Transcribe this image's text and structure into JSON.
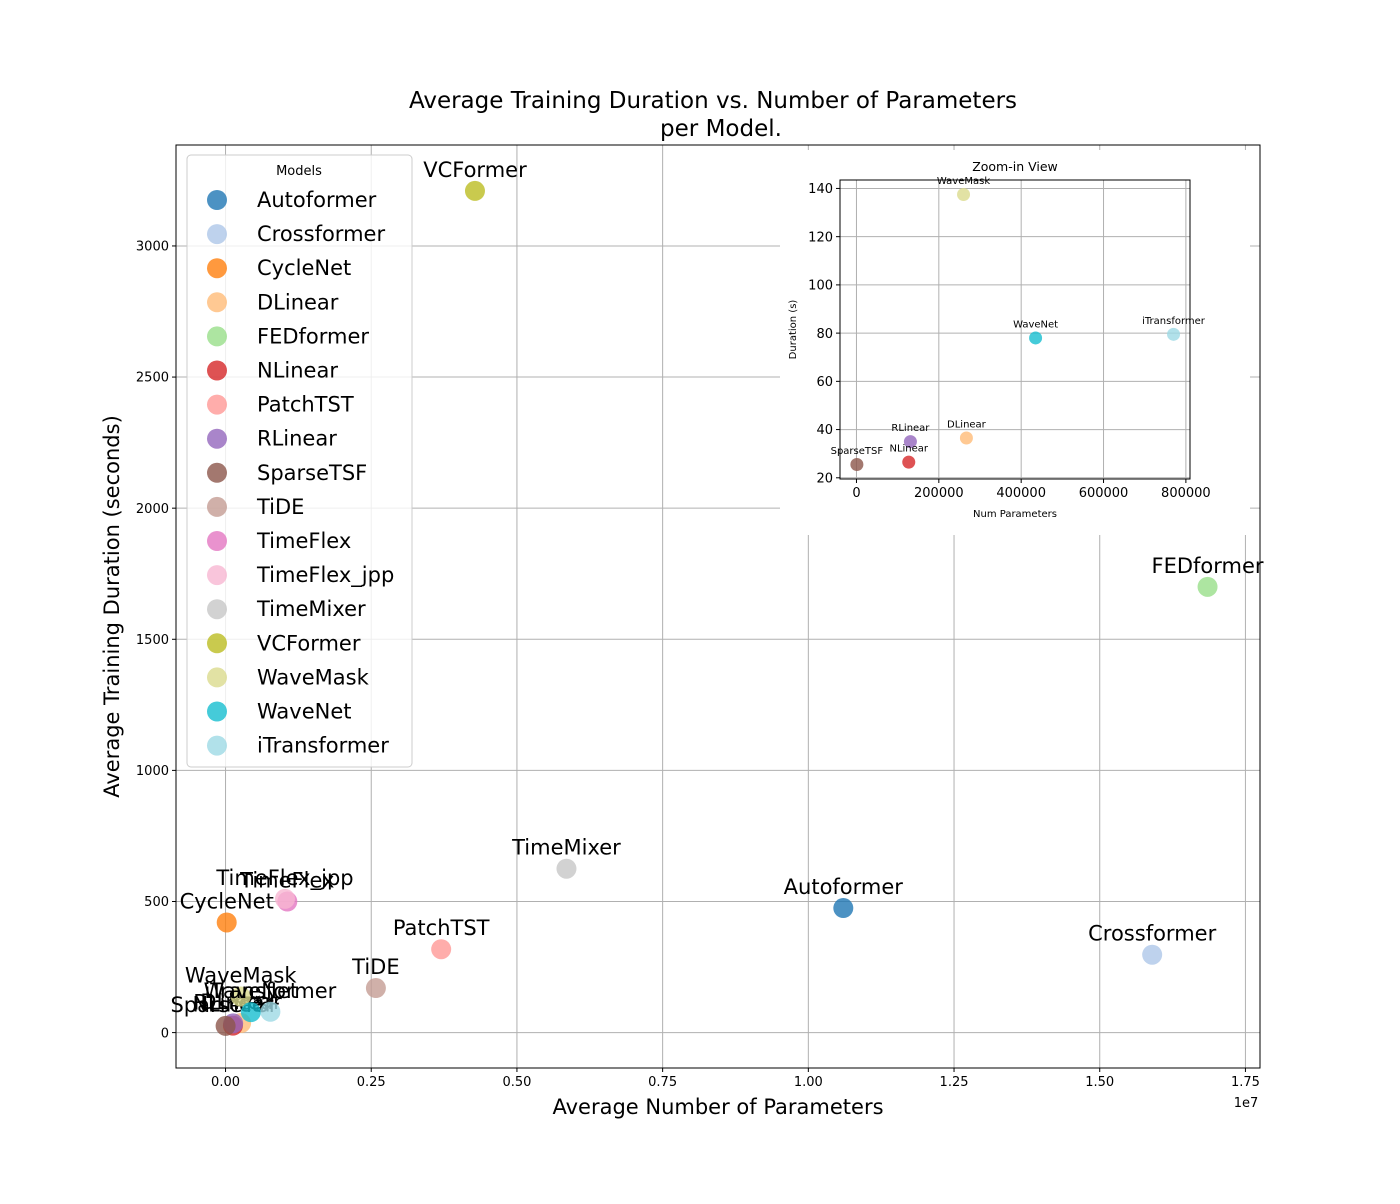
{
  "chart_data": [
    {
      "type": "scatter",
      "title": "Average Training Duration vs. Number of Parameters\nper Model.",
      "xlabel": "Average Number of Parameters",
      "ylabel": "Average Training Duration (seconds)",
      "x_offset_label": "1e7",
      "xlim": [
        -850000,
        17750000
      ],
      "ylim": [
        -135,
        3385
      ],
      "x_ticks": [
        0,
        2500000,
        5000000,
        7500000,
        10000000,
        12500000,
        15000000,
        17500000
      ],
      "x_tick_labels": [
        "0.00",
        "0.25",
        "0.50",
        "0.75",
        "1.00",
        "1.25",
        "1.50",
        "1.75"
      ],
      "y_ticks": [
        0,
        500,
        1000,
        1500,
        2000,
        2500,
        3000
      ],
      "y_tick_labels": [
        "0",
        "500",
        "1000",
        "1500",
        "2000",
        "2500",
        "3000"
      ],
      "grid": true,
      "legend": {
        "title": "Models",
        "placement": "upper-left"
      },
      "series": [
        {
          "name": "Autoformer",
          "color": "#1f77b4",
          "x": 10600000,
          "y": 475
        },
        {
          "name": "Crossformer",
          "color": "#aec7e8",
          "x": 15900000,
          "y": 297
        },
        {
          "name": "CycleNet",
          "color": "#ff7f0e",
          "x": 20000,
          "y": 420
        },
        {
          "name": "DLinear",
          "color": "#ffbb78",
          "x": 267000,
          "y": 36.5
        },
        {
          "name": "FEDformer",
          "color": "#98df8a",
          "x": 16850000,
          "y": 1700
        },
        {
          "name": "NLinear",
          "color": "#d62728",
          "x": 127000,
          "y": 26.5
        },
        {
          "name": "PatchTST",
          "color": "#ff9896",
          "x": 3700000,
          "y": 318
        },
        {
          "name": "RLinear",
          "color": "#9467bd",
          "x": 131000,
          "y": 35
        },
        {
          "name": "SparseTSF",
          "color": "#8c564b",
          "x": 1000,
          "y": 25.5
        },
        {
          "name": "TiDE",
          "color": "#c49c94",
          "x": 2580000,
          "y": 170
        },
        {
          "name": "TimeFlex",
          "color": "#e377c2",
          "x": 1060000,
          "y": 500
        },
        {
          "name": "TimeFlex_jpp",
          "color": "#f7b6d2",
          "x": 1020000,
          "y": 510
        },
        {
          "name": "TimeMixer",
          "color": "#c7c7c7",
          "x": 5850000,
          "y": 625
        },
        {
          "name": "VCFormer",
          "color": "#bcbd22",
          "x": 4280000,
          "y": 3210
        },
        {
          "name": "WaveMask",
          "color": "#dbdb8d",
          "x": 260000,
          "y": 137.5
        },
        {
          "name": "WaveNet",
          "color": "#17becf",
          "x": 435000,
          "y": 78
        },
        {
          "name": "iTransformer",
          "color": "#9edae5",
          "x": 770000,
          "y": 79.5
        }
      ]
    },
    {
      "type": "scatter",
      "title": "Zoom-in View",
      "xlabel": "Num Parameters",
      "ylabel": "Duration (s)",
      "xlim": [
        -40000,
        810000
      ],
      "ylim": [
        19.5,
        143.5
      ],
      "x_ticks": [
        0,
        200000,
        400000,
        600000,
        800000
      ],
      "x_tick_labels": [
        "0",
        "200000",
        "400000",
        "600000",
        "800000"
      ],
      "y_ticks": [
        20,
        40,
        60,
        80,
        100,
        120,
        140
      ],
      "y_tick_labels": [
        "20",
        "40",
        "60",
        "80",
        "100",
        "120",
        "140"
      ],
      "grid": true,
      "series": [
        {
          "name": "WaveMask",
          "color": "#dbdb8d",
          "x": 260000,
          "y": 137.5
        },
        {
          "name": "WaveNet",
          "color": "#17becf",
          "x": 435000,
          "y": 78
        },
        {
          "name": "iTransformer",
          "color": "#9edae5",
          "x": 770000,
          "y": 79.5
        },
        {
          "name": "RLinear",
          "color": "#9467bd",
          "x": 131000,
          "y": 35
        },
        {
          "name": "DLinear",
          "color": "#ffbb78",
          "x": 267000,
          "y": 36.5
        },
        {
          "name": "NLinear",
          "color": "#d62728",
          "x": 127000,
          "y": 26.5
        },
        {
          "name": "SparseTSF",
          "color": "#8c564b",
          "x": 1000,
          "y": 25.5
        }
      ]
    }
  ]
}
